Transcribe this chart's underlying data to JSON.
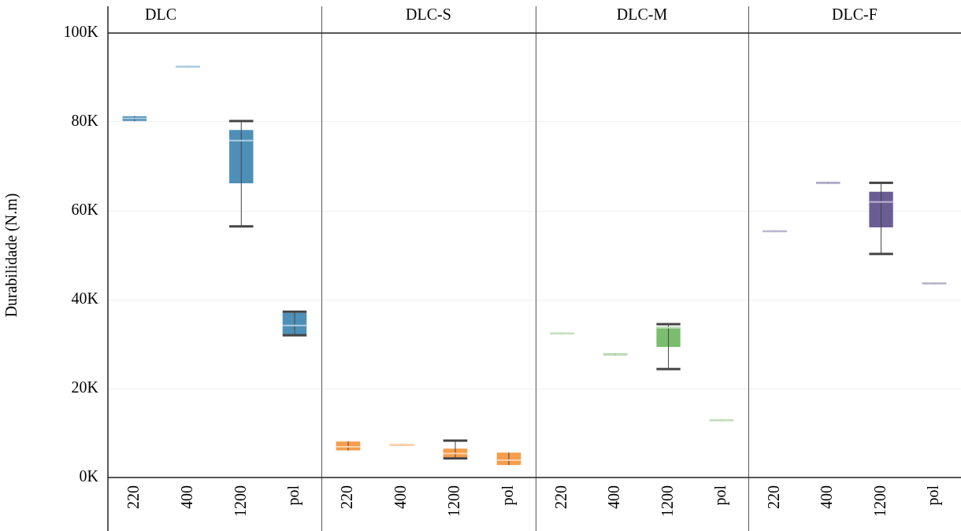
{
  "chart_data": [
    {
      "type": "box",
      "title": "DLC",
      "ylabel": "Durabilidade (N.m)",
      "categories": [
        "220",
        "400",
        "1200",
        "pol"
      ],
      "color": "#4e8fb7",
      "boxes": [
        {
          "low": 80.2,
          "q1": 80.2,
          "median": 80.8,
          "q3": 81.3,
          "high": 81.3
        },
        {
          "low": 92.2,
          "q1": 92.2,
          "median": 92.4,
          "q3": 92.6,
          "high": 92.6
        },
        {
          "low": 56.5,
          "q1": 66.2,
          "median": 75.8,
          "q3": 78.2,
          "high": 80.2
        },
        {
          "low": 32.0,
          "q1": 32.2,
          "median": 34.2,
          "q3": 37.1,
          "high": 37.3
        }
      ],
      "ylim": [
        0,
        100
      ],
      "yticks": [
        {
          "value": 0,
          "label": "0K"
        },
        {
          "value": 20,
          "label": "20K"
        },
        {
          "value": 40,
          "label": "40K"
        },
        {
          "value": 60,
          "label": "60K"
        },
        {
          "value": 80,
          "label": "80K"
        },
        {
          "value": 100,
          "label": "100K"
        }
      ],
      "grid": "y"
    },
    {
      "type": "box",
      "title": "DLC-S",
      "categories": [
        "220",
        "400",
        "1200",
        "pol"
      ],
      "color": "#f59d4c",
      "boxes": [
        {
          "low": 6.1,
          "q1": 6.1,
          "median": 6.9,
          "q3": 8.1,
          "high": 8.1
        },
        {
          "low": 7.1,
          "q1": 7.1,
          "median": 7.3,
          "q3": 7.5,
          "high": 7.5
        },
        {
          "low": 4.3,
          "q1": 4.5,
          "median": 5.4,
          "q3": 6.5,
          "high": 8.3
        },
        {
          "low": 2.8,
          "q1": 2.8,
          "median": 3.9,
          "q3": 5.6,
          "high": 5.6
        }
      ],
      "ylim": [
        0,
        100
      ],
      "yticks": [
        0,
        20,
        40,
        60,
        80,
        100
      ],
      "grid": "y",
      "tick_labels": "x"
    },
    {
      "type": "box",
      "title": "DLC-M",
      "categories": [
        "220",
        "400",
        "1200",
        "pol"
      ],
      "color": "#7bbd6f",
      "boxes": [
        {
          "low": 32.2,
          "q1": 32.2,
          "median": 32.4,
          "q3": 32.6,
          "high": 32.6
        },
        {
          "low": 27.5,
          "q1": 27.5,
          "median": 27.7,
          "q3": 27.9,
          "high": 27.9
        },
        {
          "low": 24.4,
          "q1": 29.4,
          "median": 33.7,
          "q3": 33.9,
          "high": 34.5
        },
        {
          "low": 12.7,
          "q1": 12.7,
          "median": 12.9,
          "q3": 13.1,
          "high": 13.1
        }
      ],
      "ylim": [
        0,
        100
      ],
      "yticks": [
        0,
        20,
        40,
        60,
        80,
        100
      ],
      "grid": "y",
      "tick_labels": "x"
    },
    {
      "type": "box",
      "title": "DLC-F",
      "categories": [
        "220",
        "400",
        "1200",
        "pol"
      ],
      "color": "#6a5d94",
      "boxes": [
        {
          "low": 55.2,
          "q1": 55.2,
          "median": 55.4,
          "q3": 55.6,
          "high": 55.6
        },
        {
          "low": 66.1,
          "q1": 66.1,
          "median": 66.3,
          "q3": 66.5,
          "high": 66.5
        },
        {
          "low": 50.3,
          "q1": 56.3,
          "median": 62.0,
          "q3": 64.3,
          "high": 66.3
        },
        {
          "low": 43.5,
          "q1": 43.5,
          "median": 43.7,
          "q3": 43.9,
          "high": 43.9
        }
      ],
      "ylim": [
        0,
        100
      ],
      "yticks": [
        0,
        20,
        40,
        60,
        80,
        100
      ],
      "grid": "y",
      "tick_labels": "x"
    }
  ]
}
